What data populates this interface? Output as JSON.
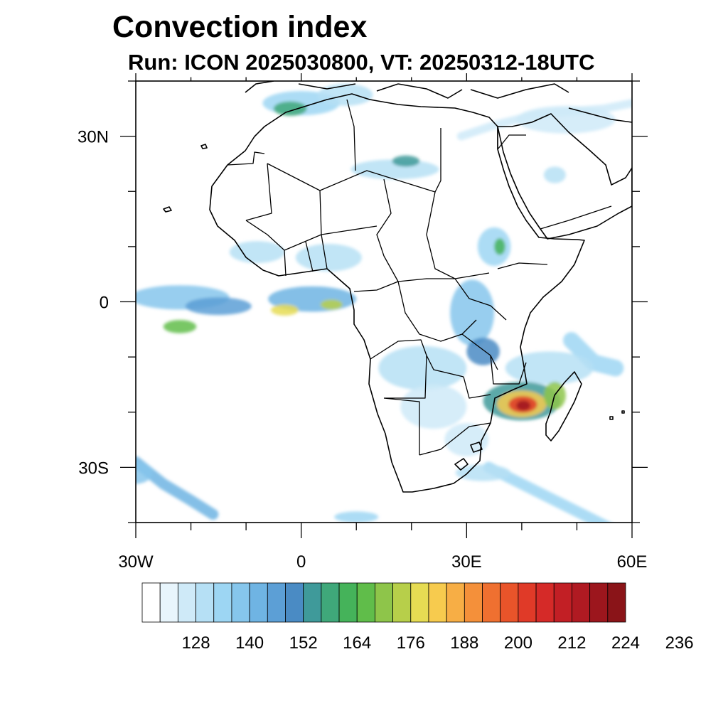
{
  "title": "Convection index",
  "subtitle": "Run: ICON 2025030800,  VT: 20250312-18UTC",
  "map": {
    "projection": "cylindrical equidistant",
    "lon_range": [
      -30,
      60
    ],
    "lat_range": [
      -40,
      40
    ],
    "x_ticks": [
      {
        "value": -30,
        "label": "30W"
      },
      {
        "value": 0,
        "label": "0"
      },
      {
        "value": 30,
        "label": "30E"
      },
      {
        "value": 60,
        "label": "60E"
      }
    ],
    "y_ticks": [
      {
        "value": 30,
        "label": "30N"
      },
      {
        "value": 0,
        "label": "0"
      },
      {
        "value": -30,
        "label": "30S"
      }
    ],
    "features": [
      "coastlines",
      "country borders"
    ]
  },
  "colorbar": {
    "colors": [
      "#ffffff",
      "#e8f5fc",
      "#cfeaf8",
      "#b6e0f5",
      "#9dd6f3",
      "#86c6ec",
      "#6fb4e3",
      "#5c9fd6",
      "#4a8bc4",
      "#3f9a9a",
      "#3fa87a",
      "#45b35a",
      "#60bd4a",
      "#8ec54a",
      "#b7cf4a",
      "#e6dc53",
      "#f7cb4e",
      "#f7ae45",
      "#f4903a",
      "#ef7030",
      "#e9542a",
      "#e03a28",
      "#d52a28",
      "#c21f25",
      "#b01a22",
      "#9c161d",
      "#8a1418"
    ],
    "labels": [
      "128",
      "140",
      "152",
      "164",
      "176",
      "188",
      "200",
      "212",
      "224",
      "236"
    ]
  },
  "field_areas": [
    {
      "lon": -22,
      "lat": 0.8,
      "rx": 9,
      "ry": 2.2,
      "level": 5
    },
    {
      "lon": -15,
      "lat": -0.8,
      "rx": 6,
      "ry": 1.6,
      "level": 7
    },
    {
      "lon": -22,
      "lat": -4.5,
      "rx": 3,
      "ry": 1.2,
      "level": 12
    },
    {
      "lon": 2,
      "lat": 0.5,
      "rx": 8,
      "ry": 2.3,
      "level": 6
    },
    {
      "lon": -3,
      "lat": -1.5,
      "rx": 2.5,
      "ry": 1,
      "level": 15
    },
    {
      "lon": 5.5,
      "lat": -0.5,
      "rx": 2,
      "ry": 0.9,
      "level": 14
    },
    {
      "lon": 5,
      "lat": 8,
      "rx": 6,
      "ry": 2.5,
      "level": 3
    },
    {
      "lon": -8,
      "lat": 9,
      "rx": 5,
      "ry": 2,
      "level": 3
    },
    {
      "lon": 17,
      "lat": 24,
      "rx": 8,
      "ry": 1.8,
      "level": 3
    },
    {
      "lon": 19,
      "lat": 25.5,
      "rx": 2.5,
      "ry": 1,
      "level": 9
    },
    {
      "lon": 0,
      "lat": 36,
      "rx": 7,
      "ry": 2.2,
      "level": 4
    },
    {
      "lon": -2,
      "lat": 35,
      "rx": 3,
      "ry": 1.3,
      "level": 10
    },
    {
      "lon": 8,
      "lat": 37.5,
      "rx": 5,
      "ry": 2,
      "level": 3
    },
    {
      "lon": 48,
      "lat": 33,
      "rx": 9,
      "ry": 2.5,
      "level": 2
    },
    {
      "lon": 35,
      "lat": 10,
      "rx": 3,
      "ry": 3.5,
      "level": 4
    },
    {
      "lon": 36,
      "lat": 10,
      "rx": 1,
      "ry": 1.5,
      "level": 11
    },
    {
      "lon": 46,
      "lat": 23,
      "rx": 2,
      "ry": 1.5,
      "level": 3
    },
    {
      "lon": 31,
      "lat": -2,
      "rx": 4,
      "ry": 6,
      "level": 5
    },
    {
      "lon": 33,
      "lat": -9,
      "rx": 3,
      "ry": 2.5,
      "level": 8
    },
    {
      "lon": 22,
      "lat": -12,
      "rx": 8,
      "ry": 4,
      "level": 3
    },
    {
      "lon": 24,
      "lat": -19,
      "rx": 6,
      "ry": 4,
      "level": 2
    },
    {
      "lon": 30,
      "lat": -25,
      "rx": 4,
      "ry": 3,
      "level": 2
    },
    {
      "lon": 45,
      "lat": -12,
      "rx": 8,
      "ry": 3,
      "level": 3
    },
    {
      "lon": 40,
      "lat": -18,
      "rx": 7,
      "ry": 3.5,
      "level": 9
    },
    {
      "lon": 40,
      "lat": -18.5,
      "rx": 4.5,
      "ry": 2.4,
      "level": 16
    },
    {
      "lon": 40.2,
      "lat": -18.6,
      "rx": 2.6,
      "ry": 1.5,
      "level": 21
    },
    {
      "lon": 40.3,
      "lat": -18.8,
      "rx": 1.3,
      "ry": 0.9,
      "level": 25
    },
    {
      "lon": 46,
      "lat": -17,
      "rx": 2,
      "ry": 2.5,
      "level": 13
    },
    {
      "lon": 33,
      "lat": -31,
      "rx": 5,
      "ry": 1.5,
      "level": 3
    },
    {
      "lon": 10,
      "lat": -39,
      "rx": 4,
      "ry": 1,
      "level": 4
    },
    {
      "lon": -30,
      "lat": -31,
      "rx": 3,
      "ry": 2,
      "level": 5
    }
  ],
  "field_bands": [
    {
      "points": [
        [
          -30,
          -29
        ],
        [
          -25,
          -33
        ],
        [
          -20,
          -36
        ],
        [
          -16,
          -38.5
        ]
      ],
      "width": 2,
      "level": 6
    },
    {
      "points": [
        [
          34,
          -30
        ],
        [
          40,
          -33
        ],
        [
          46,
          -36
        ],
        [
          52,
          -39
        ],
        [
          56,
          -41
        ]
      ],
      "width": 2,
      "level": 4
    },
    {
      "points": [
        [
          49,
          -7
        ],
        [
          53,
          -11
        ],
        [
          57,
          -12
        ]
      ],
      "width": 3,
      "level": 4
    },
    {
      "points": [
        [
          29,
          30
        ],
        [
          35,
          32
        ],
        [
          43,
          34
        ],
        [
          55,
          35
        ],
        [
          60,
          36
        ]
      ],
      "width": 1.5,
      "level": 2
    }
  ]
}
